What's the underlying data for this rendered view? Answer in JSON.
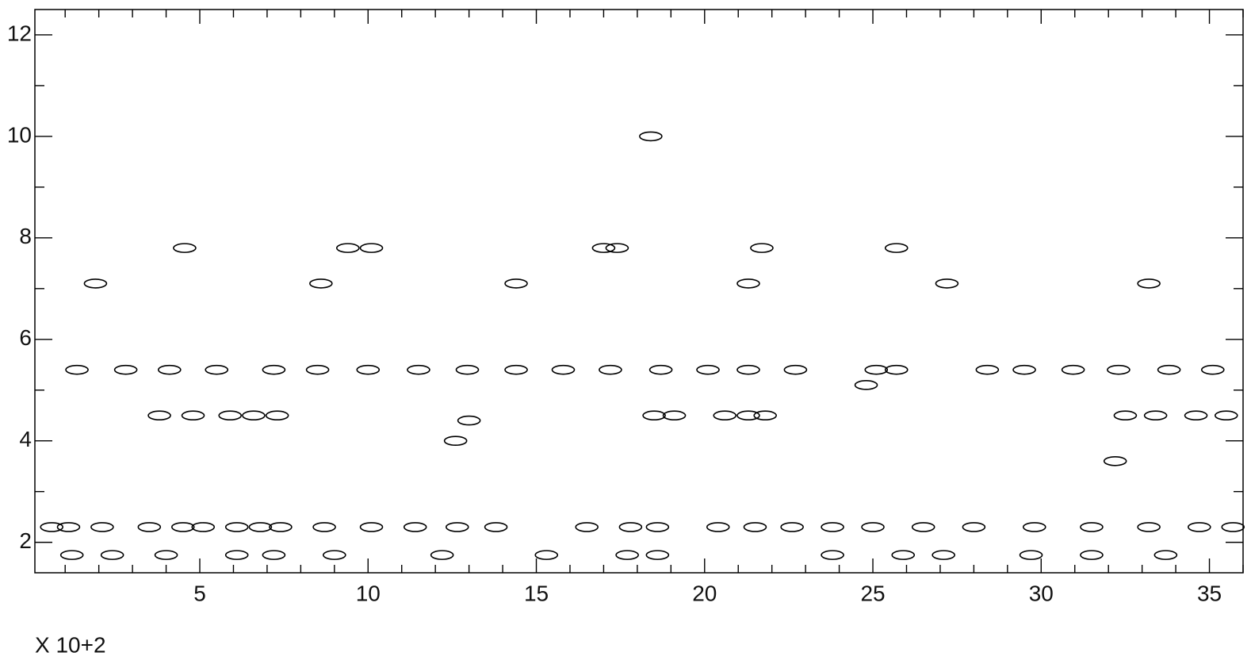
{
  "chart_data": {
    "type": "contour",
    "x_multiplier": "X 10+2",
    "xlim": [
      0.1,
      36
    ],
    "ylim": [
      1.4,
      12.5
    ],
    "xticks": [
      5,
      10,
      15,
      20,
      25,
      30,
      35
    ],
    "xminorticks": [
      1,
      2,
      3,
      4,
      6,
      7,
      8,
      9,
      11,
      12,
      13,
      14,
      16,
      17,
      18,
      19,
      21,
      22,
      23,
      24,
      26,
      27,
      28,
      29,
      31,
      32,
      33,
      34,
      36
    ],
    "yticks": [
      2,
      4,
      6,
      8,
      10,
      12
    ],
    "yminorticks": [
      3,
      5,
      7,
      9,
      11
    ],
    "color": "#000000",
    "x": [
      1.9,
      8.6,
      14.4,
      21.3,
      27.2,
      33.2,
      1.35,
      2.8,
      4.1,
      5.5,
      7.2,
      8.5,
      10.0,
      11.5,
      12.95,
      14.4,
      15.8,
      17.2,
      18.7,
      20.1,
      21.3,
      22.7,
      25.1,
      25.7,
      28.4,
      29.5,
      30.95,
      32.3,
      33.8,
      35.1,
      4.55,
      9.4,
      10.1,
      17.0,
      17.4,
      21.7,
      25.7,
      3.8,
      4.8,
      5.9,
      6.6,
      7.3,
      18.5,
      19.1,
      20.6,
      21.3,
      21.8,
      32.5,
      33.4,
      34.6,
      35.5,
      0.6,
      1.1,
      2.1,
      3.5,
      4.5,
      5.1,
      6.1,
      6.8,
      7.4,
      8.7,
      10.1,
      11.4,
      12.65,
      13.8,
      16.5,
      17.8,
      18.6,
      20.4,
      21.5,
      22.6,
      23.8,
      25.0,
      26.5,
      28.0,
      29.8,
      31.5,
      33.2,
      34.7,
      35.7,
      18.4,
      13.0,
      12.6,
      32.2,
      24.8,
      1.2,
      2.4,
      4.0,
      6.1,
      7.2,
      9.0,
      12.2,
      15.3,
      17.7,
      18.6,
      23.8,
      25.9,
      27.1,
      29.7,
      31.5,
      33.7
    ],
    "y": [
      7.1,
      7.1,
      7.1,
      7.1,
      7.1,
      7.1,
      5.4,
      5.4,
      5.4,
      5.4,
      5.4,
      5.4,
      5.4,
      5.4,
      5.4,
      5.4,
      5.4,
      5.4,
      5.4,
      5.4,
      5.4,
      5.4,
      5.4,
      5.4,
      5.4,
      5.4,
      5.4,
      5.4,
      5.4,
      5.4,
      7.8,
      7.8,
      7.8,
      7.8,
      7.8,
      7.8,
      7.8,
      4.5,
      4.5,
      4.5,
      4.5,
      4.5,
      4.5,
      4.5,
      4.5,
      4.5,
      4.5,
      4.5,
      4.5,
      4.5,
      4.5,
      2.3,
      2.3,
      2.3,
      2.3,
      2.3,
      2.3,
      2.3,
      2.3,
      2.3,
      2.3,
      2.3,
      2.3,
      2.3,
      2.3,
      2.3,
      2.3,
      2.3,
      2.3,
      2.3,
      2.3,
      2.3,
      2.3,
      2.3,
      2.3,
      2.3,
      2.3,
      2.3,
      2.3,
      2.3,
      10.0,
      4.4,
      4.0,
      3.6,
      5.1,
      1.75,
      1.75,
      1.75,
      1.75,
      1.75,
      1.75,
      1.75,
      1.75,
      1.75,
      1.75,
      1.75,
      1.75,
      1.75,
      1.75,
      1.75,
      1.75
    ]
  }
}
